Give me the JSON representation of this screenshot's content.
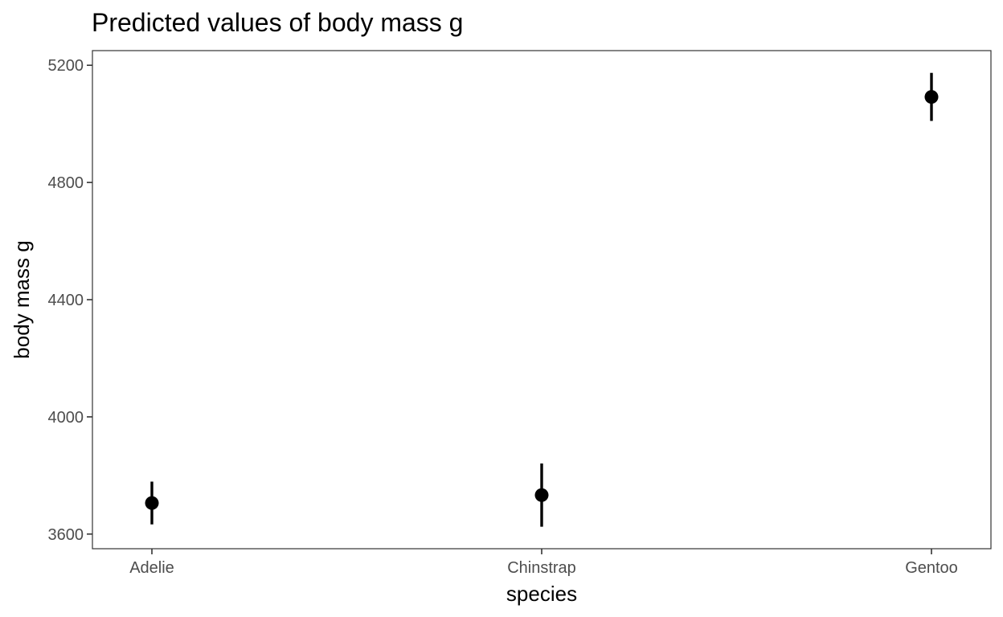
{
  "chart_data": {
    "type": "scatter",
    "title": "Predicted values of body mass g",
    "xlabel": "species",
    "ylabel": "body mass g",
    "categories": [
      "Adelie",
      "Chinstrap",
      "Gentoo"
    ],
    "values": [
      3706,
      3733,
      5092
    ],
    "lower": [
      3633,
      3625,
      5010
    ],
    "upper": [
      3779,
      3841,
      5174
    ],
    "ylim": [
      3550,
      5250
    ],
    "yticks": [
      3600,
      4000,
      4400,
      4800,
      5200
    ],
    "grid": false,
    "legend": "none"
  }
}
